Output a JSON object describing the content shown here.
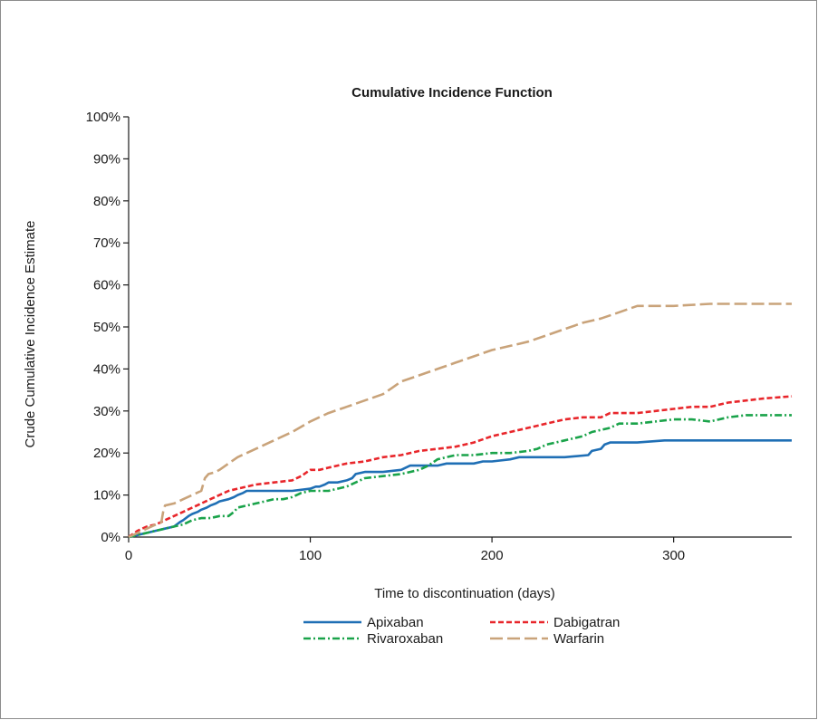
{
  "chart_data": {
    "type": "line",
    "title": "Cumulative Incidence Function",
    "xlabel": "Time to discontinuation (days)",
    "ylabel": "Crude Cumulative Incidence Estimate",
    "xlim": [
      0,
      365
    ],
    "ylim": [
      0,
      100
    ],
    "xticks": [
      0,
      100,
      200,
      300
    ],
    "xtick_labels": [
      "0",
      "100",
      "200",
      "300"
    ],
    "yticks": [
      0,
      10,
      20,
      30,
      40,
      50,
      60,
      70,
      80,
      90,
      100
    ],
    "ytick_labels": [
      "0%",
      "10%",
      "20%",
      "30%",
      "40%",
      "50%",
      "60%",
      "70%",
      "80%",
      "90%",
      "100%"
    ],
    "grid": false,
    "legend_position": "bottom",
    "series": [
      {
        "name": "Apixaban",
        "color": "#1f6fb5",
        "dash": "solid",
        "x": [
          0,
          5,
          10,
          15,
          20,
          25,
          28,
          30,
          33,
          35,
          38,
          40,
          43,
          45,
          48,
          50,
          55,
          58,
          60,
          63,
          65,
          70,
          80,
          90,
          100,
          103,
          105,
          108,
          110,
          115,
          120,
          123,
          125,
          130,
          140,
          150,
          155,
          160,
          170,
          175,
          180,
          190,
          195,
          200,
          210,
          215,
          220,
          240,
          253,
          255,
          260,
          262,
          265,
          280,
          295,
          310,
          330,
          350,
          365
        ],
        "y": [
          0,
          0.5,
          1,
          1.5,
          2,
          2.5,
          3.5,
          4,
          5,
          5.5,
          6,
          6.5,
          7,
          7.5,
          8,
          8.5,
          9,
          9.5,
          10,
          10.5,
          11,
          11,
          11,
          11,
          11.5,
          12,
          12,
          12.5,
          13,
          13,
          13.5,
          14,
          15,
          15.5,
          15.5,
          16,
          17,
          17,
          17,
          17.5,
          17.5,
          17.5,
          18,
          18,
          18.5,
          19,
          19,
          19,
          19.5,
          20.5,
          21,
          22,
          22.5,
          22.5,
          23,
          23,
          23,
          23,
          23
        ]
      },
      {
        "name": "Dabigatran",
        "color": "#e8262b",
        "dash": "short",
        "x": [
          0,
          5,
          10,
          15,
          20,
          25,
          30,
          35,
          40,
          45,
          50,
          55,
          60,
          65,
          70,
          80,
          90,
          95,
          100,
          105,
          110,
          115,
          120,
          130,
          140,
          150,
          160,
          170,
          180,
          190,
          200,
          210,
          215,
          220,
          230,
          240,
          250,
          260,
          265,
          270,
          280,
          290,
          300,
          310,
          320,
          330,
          340,
          350,
          365
        ],
        "y": [
          0,
          1.5,
          2.5,
          3,
          4,
          5,
          6,
          7,
          8,
          9,
          10,
          11,
          11.5,
          12,
          12.5,
          13,
          13.5,
          14.5,
          16,
          16,
          16.5,
          17,
          17.5,
          18,
          19,
          19.5,
          20.5,
          21,
          21.5,
          22.5,
          24,
          25,
          25.5,
          26,
          27,
          28,
          28.5,
          28.5,
          29.5,
          29.5,
          29.5,
          30,
          30.5,
          31,
          31,
          32,
          32.5,
          33,
          33.5
        ]
      },
      {
        "name": "Rivaroxaban",
        "color": "#1aa34a",
        "dash": "dashdot",
        "x": [
          0,
          5,
          10,
          15,
          20,
          25,
          30,
          35,
          40,
          45,
          50,
          55,
          58,
          60,
          65,
          70,
          75,
          80,
          85,
          90,
          95,
          100,
          110,
          115,
          120,
          125,
          130,
          140,
          150,
          155,
          160,
          165,
          170,
          175,
          180,
          190,
          200,
          210,
          220,
          225,
          230,
          240,
          250,
          255,
          260,
          265,
          270,
          280,
          290,
          300,
          310,
          320,
          330,
          340,
          350,
          365
        ],
        "y": [
          0,
          0.5,
          1,
          1.5,
          2,
          2.5,
          3,
          4,
          4.5,
          4.5,
          5,
          5,
          6,
          7,
          7.5,
          8,
          8.5,
          9,
          9,
          9.5,
          10.5,
          11,
          11,
          11.5,
          12,
          13,
          14,
          14.5,
          15,
          15.5,
          16,
          17,
          18.5,
          19,
          19.5,
          19.5,
          20,
          20,
          20.5,
          21,
          22,
          23,
          24,
          25,
          25.5,
          26,
          27,
          27,
          27.5,
          28,
          28,
          27.5,
          28.5,
          29,
          29,
          29
        ]
      },
      {
        "name": "Warfarin",
        "color": "#c9a37a",
        "dash": "long",
        "x": [
          0,
          5,
          10,
          15,
          18,
          19,
          20,
          25,
          30,
          35,
          40,
          42,
          44,
          48,
          50,
          55,
          60,
          70,
          80,
          90,
          100,
          110,
          120,
          130,
          140,
          145,
          150,
          160,
          170,
          180,
          190,
          200,
          210,
          215,
          220,
          230,
          240,
          250,
          260,
          270,
          280,
          300,
          320,
          340,
          365
        ],
        "y": [
          0,
          1,
          2,
          3,
          3.5,
          6,
          7.5,
          8,
          9,
          10,
          11,
          14,
          15,
          15.5,
          16,
          17.5,
          19,
          21,
          23,
          25,
          27.5,
          29.5,
          31,
          32.5,
          34,
          35.5,
          37,
          38.5,
          40,
          41.5,
          43,
          44.5,
          45.5,
          46,
          46.5,
          48,
          49.5,
          51,
          52,
          53.5,
          55,
          55,
          55.5,
          55.5,
          55.5
        ]
      }
    ]
  }
}
